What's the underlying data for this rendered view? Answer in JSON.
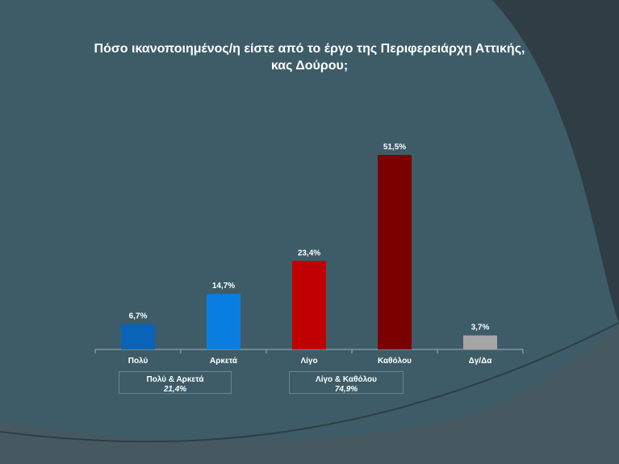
{
  "title_line1": "Πόσο ικανοποιημένος/η είστε από το έργο της Περιφερειάρχη Αττικής,",
  "title_line2": "κας Δούρου;",
  "chart_data": {
    "type": "bar",
    "title": "Πόσο ικανοποιημένος/η είστε από το έργο της Περιφερειάρχη Αττικής, κας Δούρου;",
    "categories": [
      "Πολύ",
      "Αρκετά",
      "Λίγο",
      "Καθόλου",
      "Δγ/Δα"
    ],
    "values": [
      6.7,
      14.7,
      23.4,
      51.5,
      3.7
    ],
    "value_labels": [
      "6,7%",
      "14,7%",
      "23,4%",
      "51,5%",
      "3,7%"
    ],
    "colors": [
      "#0a63b8",
      "#0a7ee0",
      "#c00000",
      "#7b0000",
      "#a6a6a6"
    ],
    "ylim": [
      0,
      55
    ],
    "grid": false,
    "legend": "none"
  },
  "groups": [
    {
      "label": "Πολύ & Αρκετά",
      "value": "21,4%"
    },
    {
      "label": "Λίγο & Καθόλου",
      "value": "74,9%"
    }
  ],
  "colors": {
    "background": "#3d5c68",
    "dark_shape": "#2d3b40",
    "text": "#ffffff"
  }
}
